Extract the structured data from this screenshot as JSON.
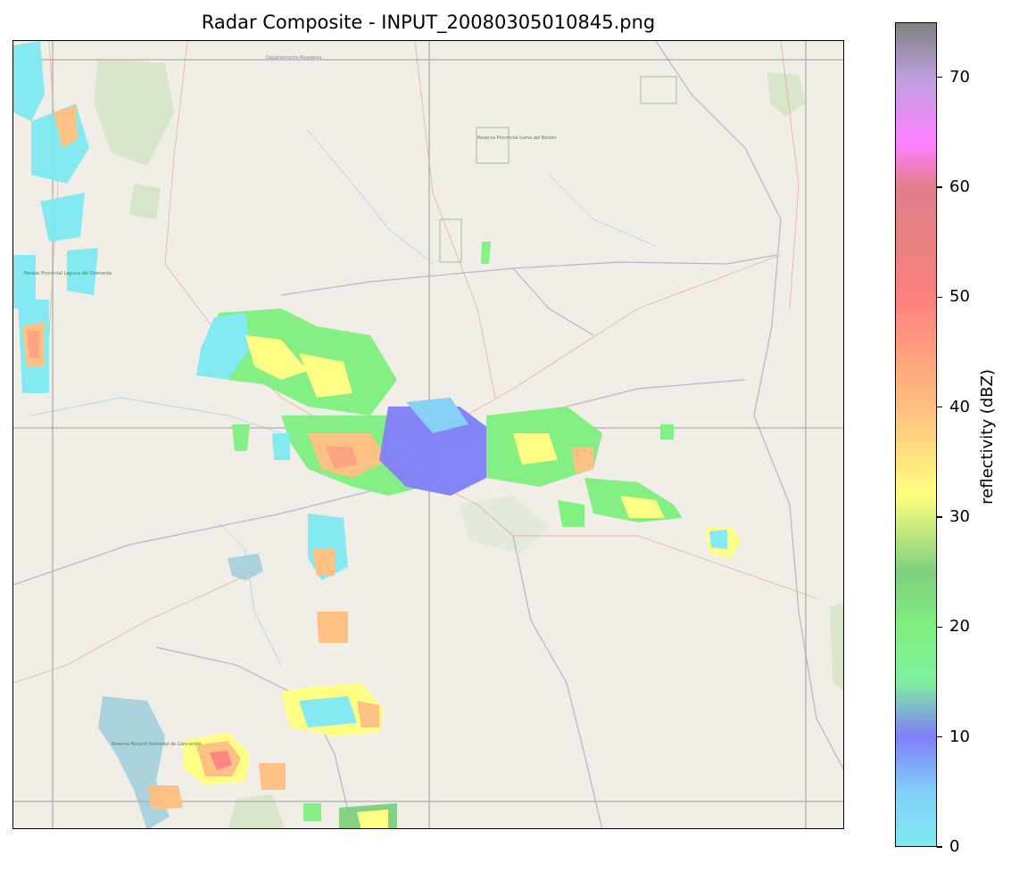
{
  "title": "Radar Composite - INPUT_20080305010845.png",
  "colorbar": {
    "label": "reflectivity (dBZ)",
    "min": 0,
    "max": 75,
    "ticks": [
      0,
      10,
      20,
      30,
      40,
      50,
      60,
      70
    ],
    "stops": [
      {
        "value": 0,
        "color": "#7fe9f2"
      },
      {
        "value": 5,
        "color": "#82cff7"
      },
      {
        "value": 10,
        "color": "#7f7ff7"
      },
      {
        "value": 15,
        "color": "#7ff0a0"
      },
      {
        "value": 20,
        "color": "#7ff07f"
      },
      {
        "value": 25,
        "color": "#7fcf7f"
      },
      {
        "value": 32,
        "color": "#ffff7f"
      },
      {
        "value": 40,
        "color": "#ffbf7f"
      },
      {
        "value": 50,
        "color": "#ff7f7f"
      },
      {
        "value": 55,
        "color": "#e88080"
      },
      {
        "value": 60,
        "color": "#e27f8c"
      },
      {
        "value": 64,
        "color": "#ff7fff"
      },
      {
        "value": 70,
        "color": "#bf9fe0"
      },
      {
        "value": 75,
        "color": "#808080"
      }
    ]
  },
  "basemap": {
    "labels": [
      "Departamento Rivadavia",
      "Parque Provincial Laguna del Diamante",
      "Reserva Natural Humedal de Llancanelo",
      "Reserva Provincial Loma del Bolsón"
    ]
  }
}
